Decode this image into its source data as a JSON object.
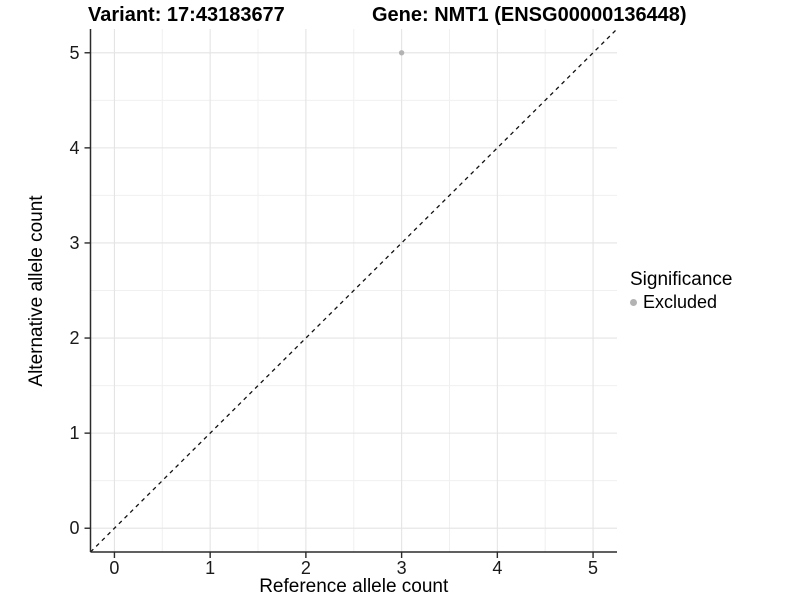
{
  "chart_data": {
    "type": "scatter",
    "titles": {
      "left": "Variant: 17:43183677",
      "right": "Gene: NMT1 (ENSG00000136448)"
    },
    "xlabel": "Reference allele count",
    "ylabel": "Alternative allele count",
    "xlim": [
      -0.25,
      5.25
    ],
    "ylim": [
      -0.25,
      5.25
    ],
    "x_ticks": [
      0,
      1,
      2,
      3,
      4,
      5
    ],
    "y_ticks": [
      0,
      1,
      2,
      3,
      4,
      5
    ],
    "grid": {
      "major": true,
      "minor": true,
      "minor_step": 0.5,
      "major_color": "#e4e4e4",
      "minor_color": "#f0f0f0"
    },
    "axis_line_color": "#2b2b2b",
    "tick_color": "#2b2b2b",
    "identity_line": {
      "style": "dashed",
      "color": "#111111",
      "from": [
        -0.25,
        -0.25
      ],
      "to": [
        5.25,
        5.25
      ]
    },
    "legend": {
      "title": "Significance",
      "position": "right",
      "items": [
        {
          "label": "Excluded",
          "color": "#b3b3b3"
        }
      ]
    },
    "series": [
      {
        "name": "Excluded",
        "color": "#b3b3b3",
        "point_radius": 2.7,
        "points": [
          [
            3,
            5
          ]
        ]
      }
    ]
  }
}
